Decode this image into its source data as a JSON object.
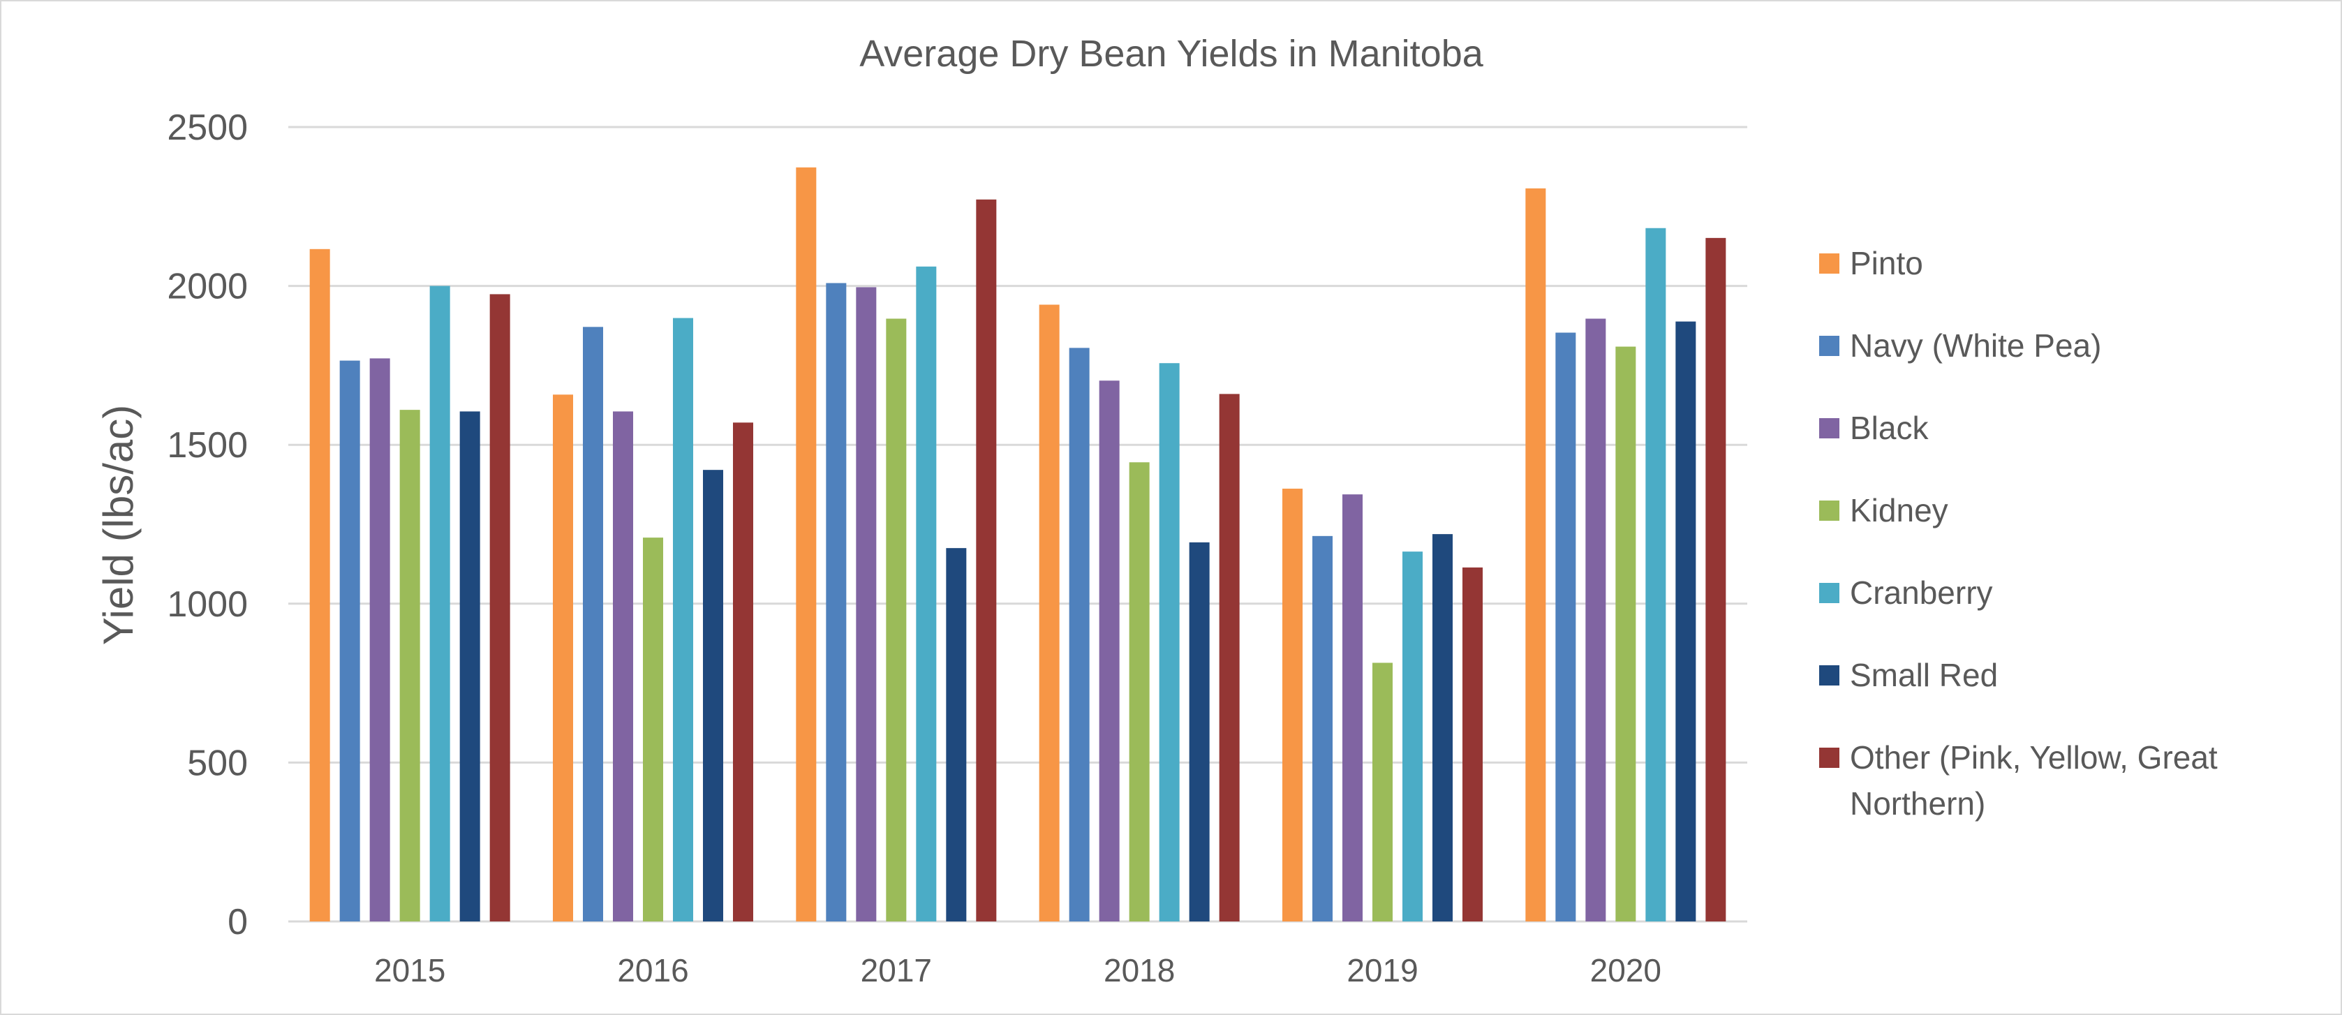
{
  "chart_data": {
    "type": "bar",
    "title": "Average Dry Bean Yields in Manitoba",
    "xlabel": "",
    "ylabel": "Yield (lbs/ac)",
    "ylim": [
      0,
      2500
    ],
    "yticks": [
      0,
      500,
      1000,
      1500,
      2000,
      2500
    ],
    "ytick_labels": [
      "0",
      "500",
      "1000",
      "1500",
      "2000",
      "2500"
    ],
    "grid": true,
    "legend_position": "right",
    "categories": [
      "2015",
      "2016",
      "2017",
      "2018",
      "2019",
      "2020"
    ],
    "series": [
      {
        "name": "Pinto",
        "color": "#F79646",
        "values": [
          2116,
          1658,
          2373,
          1941,
          1362,
          2307
        ]
      },
      {
        "name": "Navy (White Pea)",
        "color": "#4F81BD",
        "values": [
          1765,
          1871,
          2009,
          1805,
          1213,
          1853
        ]
      },
      {
        "name": "Black",
        "color": "#8064A2",
        "values": [
          1772,
          1605,
          1996,
          1702,
          1344,
          1897
        ]
      },
      {
        "name": "Kidney",
        "color": "#9BBB59",
        "values": [
          1610,
          1208,
          1897,
          1445,
          814,
          1809
        ]
      },
      {
        "name": "Cranberry",
        "color": "#4BACC6",
        "values": [
          2000,
          1899,
          2061,
          1757,
          1164,
          2182
        ]
      },
      {
        "name": "Small Red",
        "color": "#1F497D",
        "values": [
          1605,
          1421,
          1175,
          1193,
          1219,
          1888
        ]
      },
      {
        "name": "Other (Pink, Yellow, Great Northern)",
        "color": "#943634",
        "values": [
          1974,
          1570,
          2272,
          1660,
          1114,
          2151
        ]
      }
    ],
    "legend_lines": [
      [
        "Pinto"
      ],
      [
        "Navy (White Pea)"
      ],
      [
        "Black"
      ],
      [
        "Kidney"
      ],
      [
        "Cranberry"
      ],
      [
        "Small Red"
      ],
      [
        "Other (Pink, Yellow, Great",
        "Northern)"
      ]
    ]
  }
}
